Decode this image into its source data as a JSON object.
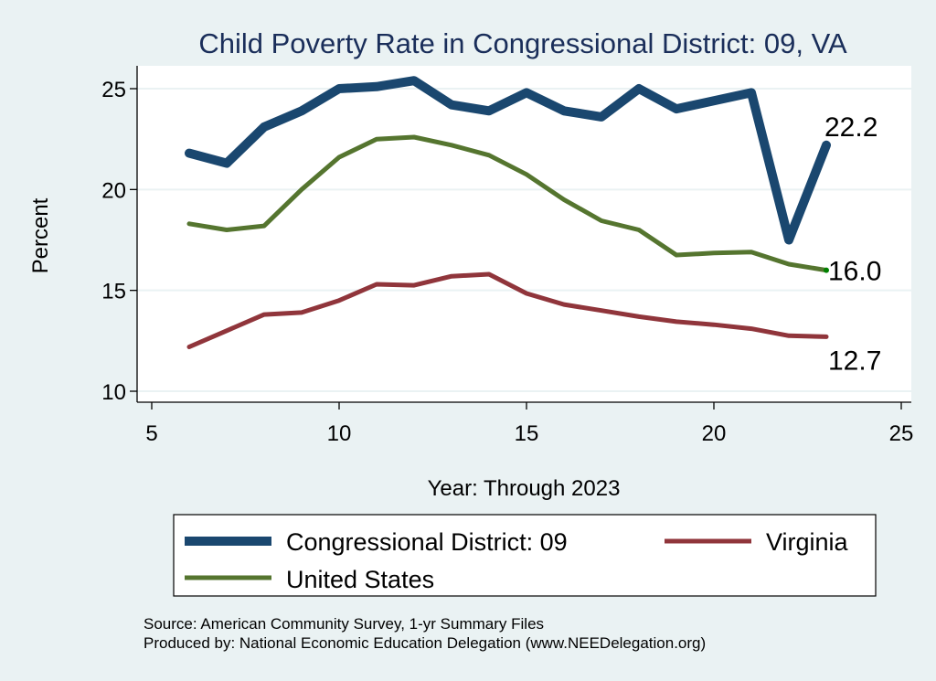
{
  "chart_data": {
    "type": "line",
    "title": "Child Poverty Rate in Congressional District:  09, VA",
    "xlabel": "Year: Through 2023",
    "ylabel": "Percent",
    "xlim": [
      5,
      25
    ],
    "ylim": [
      10,
      25
    ],
    "xticks": [
      5,
      10,
      15,
      20,
      25
    ],
    "yticks": [
      10,
      15,
      20,
      25
    ],
    "grid": "horizontal",
    "legend_position": "bottom",
    "x": [
      6,
      7,
      8,
      9,
      10,
      11,
      12,
      13,
      14,
      15,
      16,
      17,
      18,
      19,
      20,
      21,
      22,
      23
    ],
    "series": [
      {
        "name": "Congressional District:  09",
        "color": "#1a476f",
        "values": [
          21.8,
          21.3,
          23.1,
          23.9,
          25.0,
          25.1,
          25.4,
          24.2,
          23.9,
          24.8,
          23.9,
          23.6,
          25.0,
          24.0,
          24.4,
          24.8,
          17.5,
          22.2
        ],
        "end_label": "22.2"
      },
      {
        "name": "Virginia",
        "color": "#90353b",
        "values": [
          12.2,
          13.0,
          13.8,
          13.9,
          14.5,
          15.3,
          15.25,
          15.7,
          15.8,
          14.85,
          14.3,
          14.0,
          13.7,
          13.45,
          13.3,
          13.1,
          12.75,
          12.7
        ],
        "end_label": "12.7"
      },
      {
        "name": "United States",
        "color": "#55752f",
        "values": [
          18.3,
          18.0,
          18.2,
          20.0,
          21.6,
          22.5,
          22.6,
          22.2,
          21.7,
          20.75,
          19.5,
          18.45,
          18.0,
          16.75,
          16.85,
          16.9,
          16.3,
          16.0
        ],
        "end_label": "16.0"
      }
    ],
    "notes": [
      "Source: American Community Survey, 1-yr Summary Files",
      "Produced by: National Economic Education Delegation (www.NEEDelegation.org)"
    ]
  }
}
